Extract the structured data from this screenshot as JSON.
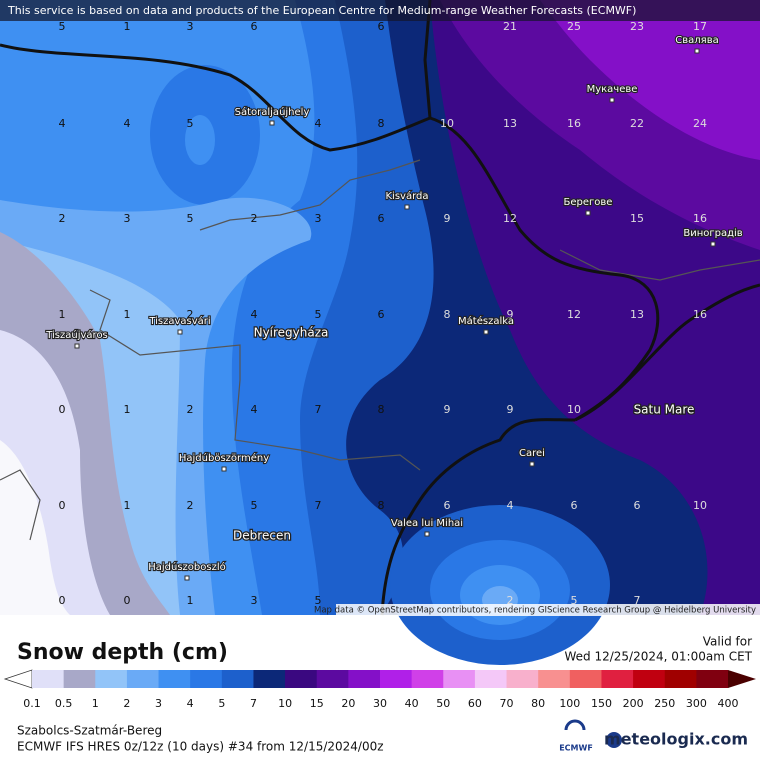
{
  "header": {
    "attribution": "This service is based on data and products of the European Centre for Medium-range Weather Forecasts (ECMWF)"
  },
  "map": {
    "places": [
      "Свалява",
      "Мукачеве",
      "Sátoraljaújhely",
      "Kisvárda",
      "Берегове",
      "Виноградів",
      "Tiszavasvári",
      "Nyíregyháza",
      "Mátészalka",
      "Tiszaújváros",
      "Satu Mare",
      "Hajdúböszörmény",
      "Carei",
      "Debrecen",
      "Valea lui Mihai",
      "Hajdúszoboszló"
    ],
    "grid_values": [
      5,
      1,
      3,
      6,
      6,
      21,
      25,
      23,
      17,
      4,
      4,
      5,
      4,
      8,
      10,
      13,
      16,
      22,
      24,
      2,
      3,
      5,
      2,
      3,
      6,
      9,
      12,
      15,
      16,
      1,
      1,
      2,
      4,
      5,
      6,
      8,
      9,
      12,
      13,
      16,
      0,
      1,
      2,
      4,
      7,
      8,
      9,
      9,
      10,
      0,
      1,
      2,
      5,
      7,
      8,
      6,
      4,
      6,
      6,
      10,
      0,
      0,
      1,
      3,
      5,
      2,
      5,
      7
    ],
    "credits": "Map data © OpenStreetMap contributors, rendering GIScience Research Group @ Heidelberg University"
  },
  "legend": {
    "title": "Snow depth (cm)",
    "valid_label": "Valid for",
    "valid_time": "Wed 12/25/2024, 01:00am CET",
    "levels": [
      0.1,
      0.5,
      1,
      2,
      3,
      4,
      5,
      7,
      10,
      15,
      20,
      30,
      40,
      50,
      60,
      70,
      80,
      100,
      150,
      200,
      250,
      300,
      400
    ],
    "colors": [
      "#ffffff",
      "#e0e0f8",
      "#a8a8c8",
      "#92c4f8",
      "#6aaaf6",
      "#3f90f2",
      "#2a78e6",
      "#1d60cc",
      "#0c2878",
      "#3a0880",
      "#5c0aa0",
      "#8410c8",
      "#b020e8",
      "#d040e8",
      "#e890f4",
      "#f4c8f8",
      "#f8b0cc",
      "#f89090",
      "#f06060",
      "#e02040",
      "#c00010",
      "#a00000",
      "#800010",
      "#4a0000"
    ]
  },
  "footer": {
    "region": "Szabolcs-Szatmár-Bereg",
    "model": "ECMWF IFS HRES 0z/12z (10 days) #34 from  12/15/2024/00z",
    "logo": "ECMWF",
    "brand": "meteologix.com"
  }
}
